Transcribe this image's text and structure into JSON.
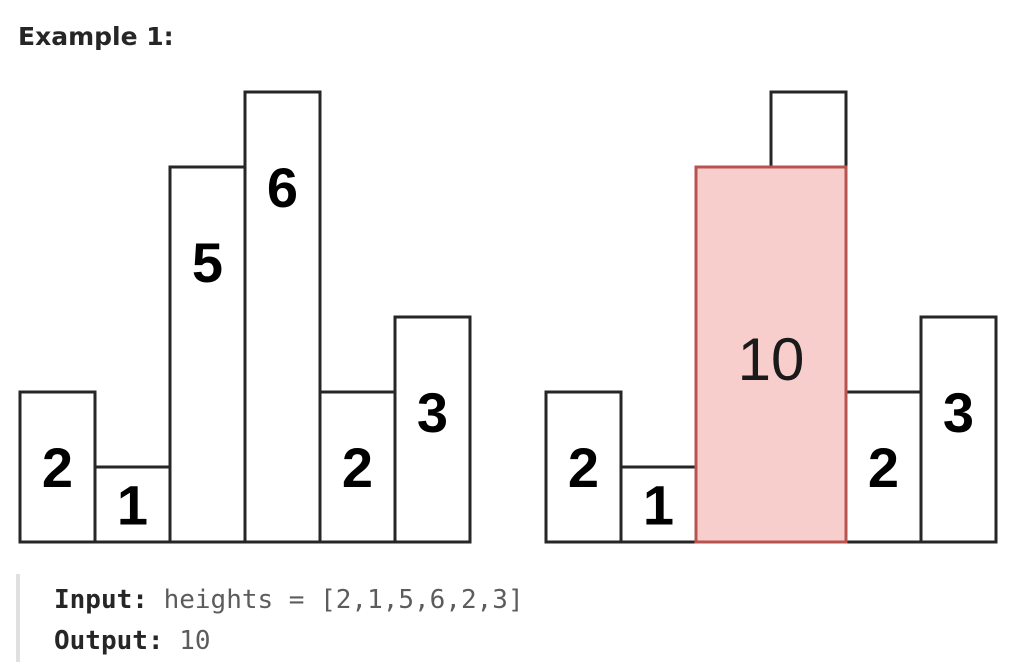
{
  "example": {
    "title": "Example 1:"
  },
  "diagram": {
    "heights": [
      2,
      1,
      5,
      6,
      2,
      3
    ],
    "left_labels": [
      "2",
      "1",
      "5",
      "6",
      "2",
      "3"
    ],
    "right_labels": [
      "2",
      "1",
      "",
      "",
      "2",
      "3"
    ],
    "largest_rectangle": {
      "start_index": 2,
      "end_index": 3,
      "height": 5,
      "area_label": "10"
    },
    "colors": {
      "bar_stroke": "#262626",
      "bar_fill": "#ffffff",
      "highlight_fill": "#f8cecc",
      "highlight_stroke": "#b85450"
    }
  },
  "io": {
    "input_label": "Input:",
    "input_value": "heights = [2,1,5,6,2,3]",
    "output_label": "Output:",
    "output_value": "10"
  }
}
